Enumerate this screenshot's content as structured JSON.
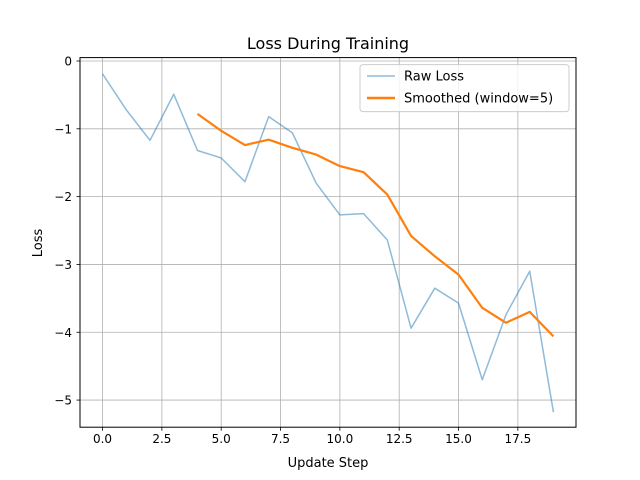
{
  "chart_data": {
    "type": "line",
    "title": "Loss During Training",
    "xlabel": "Update Step",
    "ylabel": "Loss",
    "xlim": [
      -0.95,
      19.95
    ],
    "ylim": [
      -5.4,
      0.05
    ],
    "xticks": [
      0.0,
      2.5,
      5.0,
      7.5,
      10.0,
      12.5,
      15.0,
      17.5
    ],
    "xtick_labels": [
      "0.0",
      "2.5",
      "5.0",
      "7.5",
      "10.0",
      "12.5",
      "15.0",
      "17.5"
    ],
    "yticks": [
      0,
      -1,
      -2,
      -3,
      -4,
      -5
    ],
    "ytick_labels": [
      "0",
      "−1",
      "−2",
      "−3",
      "−4",
      "−5"
    ],
    "grid": true,
    "legend_position": "top-right",
    "series": [
      {
        "name": "Raw Loss",
        "color": "#1f77b4",
        "x": [
          0,
          1,
          2,
          3,
          4,
          5,
          6,
          7,
          8,
          9,
          10,
          11,
          12,
          13,
          14,
          15,
          16,
          17,
          18,
          19
        ],
        "y": [
          -0.19,
          -0.72,
          -1.17,
          -0.49,
          -1.32,
          -1.43,
          -1.78,
          -0.82,
          -1.06,
          -1.8,
          -2.27,
          -2.25,
          -2.64,
          -3.94,
          -3.35,
          -3.57,
          -4.7,
          -3.74,
          -3.1,
          -5.18
        ]
      },
      {
        "name": "Smoothed (window=5)",
        "color": "#ff7f0e",
        "x": [
          4,
          5,
          6,
          7,
          8,
          9,
          10,
          11,
          12,
          13,
          14,
          15,
          16,
          17,
          18,
          19
        ],
        "y": [
          -0.78,
          -1.03,
          -1.24,
          -1.16,
          -1.28,
          -1.38,
          -1.55,
          -1.64,
          -1.97,
          -2.58,
          -2.88,
          -3.15,
          -3.64,
          -3.86,
          -3.7,
          -4.06
        ]
      }
    ]
  }
}
